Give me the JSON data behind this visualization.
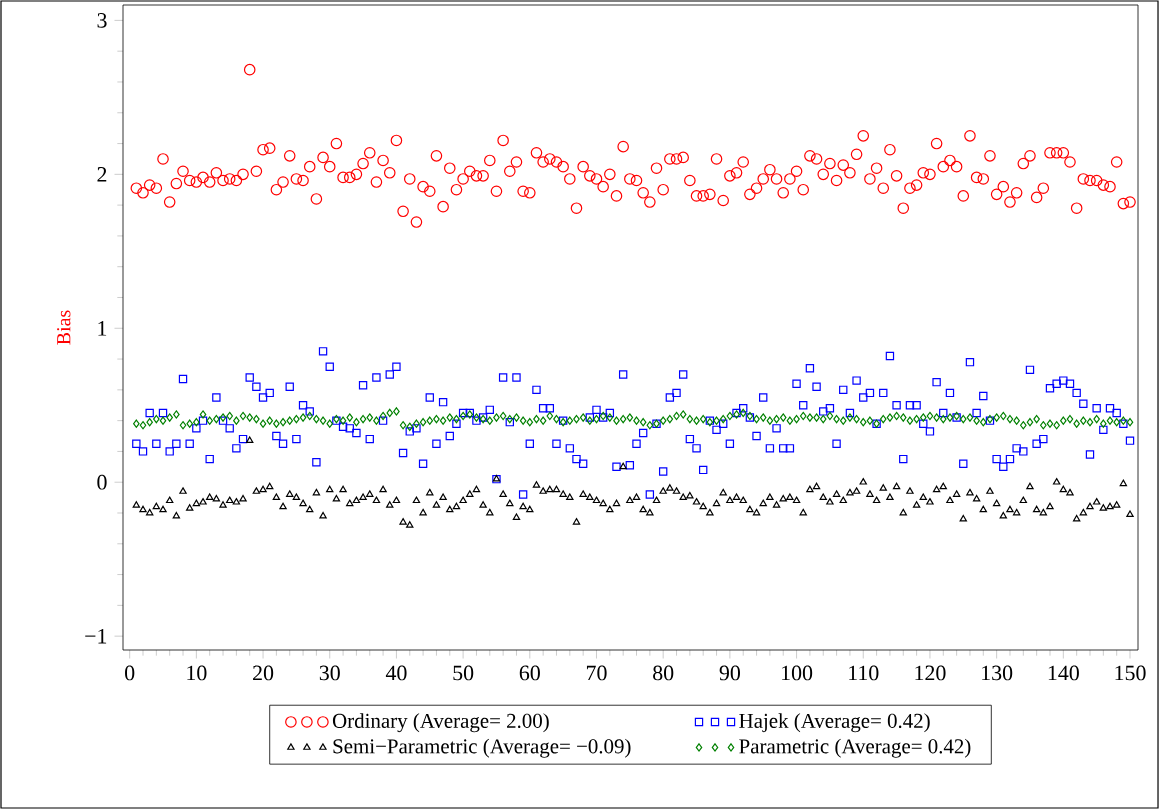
{
  "chart_data": {
    "type": "scatter",
    "ylabel": "Bias",
    "x": [
      1,
      2,
      3,
      4,
      5,
      6,
      7,
      8,
      9,
      10,
      11,
      12,
      13,
      14,
      15,
      16,
      17,
      18,
      19,
      20,
      21,
      22,
      23,
      24,
      25,
      26,
      27,
      28,
      29,
      30,
      31,
      32,
      33,
      34,
      35,
      36,
      37,
      38,
      39,
      40,
      41,
      42,
      43,
      44,
      45,
      46,
      47,
      48,
      49,
      50,
      51,
      52,
      53,
      54,
      55,
      56,
      57,
      58,
      59,
      60,
      61,
      62,
      63,
      64,
      65,
      66,
      67,
      68,
      69,
      70,
      71,
      72,
      73,
      74,
      75,
      76,
      77,
      78,
      79,
      80,
      81,
      82,
      83,
      84,
      85,
      86,
      87,
      88,
      89,
      90,
      91,
      92,
      93,
      94,
      95,
      96,
      97,
      98,
      99,
      100,
      101,
      102,
      103,
      104,
      105,
      106,
      107,
      108,
      109,
      110,
      111,
      112,
      113,
      114,
      115,
      116,
      117,
      118,
      119,
      120,
      121,
      122,
      123,
      124,
      125,
      126,
      127,
      128,
      129,
      130,
      131,
      132,
      133,
      134,
      135,
      136,
      137,
      138,
      139,
      140,
      141,
      142,
      143,
      144,
      145,
      146,
      147,
      148,
      149,
      150
    ],
    "series": [
      {
        "name": "Ordinary (Average= 2.00)",
        "color": "#ff0000",
        "marker": "circle",
        "values": [
          1.91,
          1.88,
          1.93,
          1.91,
          2.1,
          1.82,
          1.94,
          2.02,
          1.96,
          1.95,
          1.98,
          1.95,
          2.01,
          1.96,
          1.97,
          1.96,
          2.0,
          2.68,
          2.02,
          2.16,
          2.17,
          1.9,
          1.95,
          2.12,
          1.97,
          1.96,
          2.05,
          1.84,
          2.11,
          2.05,
          2.2,
          1.98,
          1.98,
          2.0,
          2.07,
          2.14,
          1.95,
          2.09,
          2.01,
          2.22,
          1.76,
          1.97,
          1.69,
          1.92,
          1.89,
          2.12,
          1.79,
          2.04,
          1.9,
          1.97,
          2.02,
          1.99,
          1.99,
          2.09,
          1.89,
          2.22,
          2.02,
          2.08,
          1.89,
          1.88,
          2.14,
          2.08,
          2.1,
          2.08,
          2.05,
          1.97,
          1.78,
          2.05,
          1.99,
          1.97,
          1.92,
          2.0,
          1.86,
          2.18,
          1.97,
          1.96,
          1.88,
          1.82,
          2.04,
          1.9,
          2.1,
          2.1,
          2.11,
          1.96,
          1.86,
          1.86,
          1.87,
          2.1,
          1.83,
          1.99,
          2.01,
          2.08,
          1.87,
          1.91,
          1.97,
          2.03,
          1.97,
          1.88,
          1.97,
          2.02,
          1.9,
          2.12,
          2.1,
          2.0,
          2.07,
          1.96,
          2.06,
          2.01,
          2.13,
          2.25,
          1.97,
          2.04,
          1.91,
          2.16,
          1.99,
          1.78,
          1.91,
          1.93,
          2.01,
          2.0,
          2.2,
          2.05,
          2.09,
          2.05,
          1.86,
          2.25,
          1.98,
          1.97,
          2.12,
          1.87,
          1.92,
          1.82,
          1.88,
          2.07,
          2.12,
          1.85,
          1.91,
          2.14,
          2.14,
          2.14,
          2.08,
          1.78,
          1.97,
          1.96,
          1.96,
          1.93,
          1.92,
          2.08,
          1.81,
          1.82
        ]
      },
      {
        "name": "Hajek (Average= 0.42)",
        "color": "#0000ff",
        "marker": "square",
        "values": [
          0.25,
          0.2,
          0.45,
          0.25,
          0.45,
          0.2,
          0.25,
          0.67,
          0.25,
          0.35,
          0.4,
          0.15,
          0.55,
          0.4,
          0.35,
          0.22,
          0.28,
          0.68,
          0.62,
          0.55,
          0.58,
          0.3,
          0.25,
          0.62,
          0.28,
          0.5,
          0.46,
          0.13,
          0.85,
          0.75,
          0.4,
          0.36,
          0.35,
          0.32,
          0.63,
          0.28,
          0.68,
          0.4,
          0.7,
          0.75,
          0.19,
          0.33,
          0.35,
          0.12,
          0.55,
          0.25,
          0.52,
          0.3,
          0.38,
          0.45,
          0.45,
          0.4,
          0.42,
          0.47,
          0.02,
          0.68,
          0.39,
          0.68,
          -0.08,
          0.25,
          0.6,
          0.48,
          0.48,
          0.25,
          0.4,
          0.22,
          0.15,
          0.12,
          0.42,
          0.47,
          0.42,
          0.45,
          0.1,
          0.7,
          0.11,
          0.25,
          0.32,
          -0.08,
          0.38,
          0.07,
          0.55,
          0.58,
          0.7,
          0.28,
          0.22,
          0.08,
          0.4,
          0.34,
          0.38,
          0.25,
          0.45,
          0.48,
          0.42,
          0.3,
          0.55,
          0.22,
          0.35,
          0.22,
          0.22,
          0.64,
          0.5,
          0.74,
          0.62,
          0.46,
          0.48,
          0.25,
          0.6,
          0.45,
          0.66,
          0.55,
          0.58,
          0.38,
          0.58,
          0.82,
          0.5,
          0.15,
          0.5,
          0.5,
          0.38,
          0.33,
          0.65,
          0.45,
          0.58,
          0.42,
          0.12,
          0.78,
          0.45,
          0.56,
          0.4,
          0.15,
          0.1,
          0.15,
          0.22,
          0.2,
          0.73,
          0.25,
          0.28,
          0.61,
          0.64,
          0.66,
          0.64,
          0.58,
          0.51,
          0.18,
          0.48,
          0.34,
          0.48,
          0.45,
          0.38,
          0.27
        ]
      },
      {
        "name": "Semi−Parametric (Average= −0.09)",
        "color": "#000000",
        "marker": "triangle",
        "values": [
          -0.15,
          -0.18,
          -0.2,
          -0.16,
          -0.18,
          -0.12,
          -0.22,
          -0.06,
          -0.17,
          -0.14,
          -0.13,
          -0.1,
          -0.11,
          -0.15,
          -0.12,
          -0.13,
          -0.11,
          0.27,
          -0.06,
          -0.05,
          -0.03,
          -0.1,
          -0.16,
          -0.08,
          -0.1,
          -0.14,
          -0.18,
          -0.07,
          -0.22,
          -0.05,
          -0.11,
          -0.05,
          -0.14,
          -0.12,
          -0.1,
          -0.08,
          -0.12,
          -0.05,
          -0.15,
          -0.12,
          -0.26,
          -0.28,
          -0.12,
          -0.2,
          -0.07,
          -0.15,
          -0.1,
          -0.18,
          -0.16,
          -0.12,
          -0.08,
          -0.05,
          -0.15,
          -0.2,
          0.02,
          -0.08,
          -0.14,
          -0.23,
          -0.16,
          -0.18,
          -0.02,
          -0.06,
          -0.05,
          -0.05,
          -0.08,
          -0.1,
          -0.26,
          -0.08,
          -0.1,
          -0.12,
          -0.14,
          -0.18,
          -0.14,
          0.1,
          -0.12,
          -0.1,
          -0.18,
          -0.2,
          -0.12,
          -0.06,
          -0.04,
          -0.06,
          -0.1,
          -0.09,
          -0.13,
          -0.16,
          -0.2,
          -0.14,
          -0.07,
          -0.12,
          -0.1,
          -0.12,
          -0.18,
          -0.2,
          -0.14,
          -0.1,
          -0.15,
          -0.11,
          -0.1,
          -0.12,
          -0.2,
          -0.05,
          -0.03,
          -0.1,
          -0.13,
          -0.08,
          -0.12,
          -0.07,
          -0.06,
          0.0,
          -0.08,
          -0.12,
          -0.04,
          -0.1,
          -0.03,
          -0.2,
          -0.06,
          -0.15,
          -0.1,
          -0.13,
          -0.05,
          -0.03,
          -0.12,
          -0.08,
          -0.24,
          -0.07,
          -0.11,
          -0.18,
          -0.06,
          -0.14,
          -0.22,
          -0.18,
          -0.2,
          -0.12,
          -0.03,
          -0.18,
          -0.2,
          -0.16,
          0.0,
          -0.05,
          -0.07,
          -0.24,
          -0.2,
          -0.16,
          -0.13,
          -0.17,
          -0.16,
          -0.15,
          -0.01,
          -0.21
        ]
      },
      {
        "name": "Parametric (Average= 0.42)",
        "color": "#008000",
        "marker": "diamond",
        "values": [
          0.38,
          0.37,
          0.39,
          0.41,
          0.4,
          0.42,
          0.44,
          0.37,
          0.38,
          0.39,
          0.44,
          0.4,
          0.41,
          0.42,
          0.43,
          0.4,
          0.43,
          0.42,
          0.41,
          0.38,
          0.4,
          0.38,
          0.39,
          0.4,
          0.41,
          0.42,
          0.43,
          0.41,
          0.4,
          0.38,
          0.41,
          0.4,
          0.42,
          0.39,
          0.41,
          0.42,
          0.4,
          0.43,
          0.45,
          0.46,
          0.37,
          0.36,
          0.38,
          0.39,
          0.4,
          0.41,
          0.4,
          0.42,
          0.41,
          0.43,
          0.44,
          0.42,
          0.41,
          0.4,
          0.42,
          0.43,
          0.41,
          0.42,
          0.4,
          0.39,
          0.41,
          0.4,
          0.43,
          0.41,
          0.39,
          0.4,
          0.41,
          0.42,
          0.4,
          0.41,
          0.43,
          0.42,
          0.4,
          0.41,
          0.42,
          0.4,
          0.39,
          0.37,
          0.38,
          0.4,
          0.41,
          0.43,
          0.44,
          0.41,
          0.4,
          0.41,
          0.39,
          0.4,
          0.41,
          0.43,
          0.44,
          0.45,
          0.43,
          0.41,
          0.42,
          0.4,
          0.41,
          0.42,
          0.4,
          0.41,
          0.43,
          0.42,
          0.42,
          0.41,
          0.43,
          0.41,
          0.4,
          0.42,
          0.41,
          0.39,
          0.4,
          0.38,
          0.41,
          0.42,
          0.43,
          0.42,
          0.4,
          0.41,
          0.42,
          0.43,
          0.42,
          0.41,
          0.42,
          0.43,
          0.41,
          0.42,
          0.4,
          0.39,
          0.41,
          0.42,
          0.43,
          0.41,
          0.4,
          0.37,
          0.39,
          0.41,
          0.37,
          0.38,
          0.37,
          0.4,
          0.41,
          0.38,
          0.4,
          0.39,
          0.41,
          0.38,
          0.4,
          0.39,
          0.4,
          0.39
        ]
      }
    ],
    "xlim": [
      -1,
      151.2
    ],
    "ylim": [
      -1.09,
      3.1
    ],
    "xticks": [
      0,
      10,
      20,
      30,
      40,
      50,
      60,
      70,
      80,
      90,
      100,
      110,
      120,
      130,
      140,
      150
    ],
    "yticks": [
      {
        "value": -1,
        "label": "−1"
      },
      0,
      1,
      2,
      3
    ],
    "grid": false,
    "legend": "bottom"
  }
}
